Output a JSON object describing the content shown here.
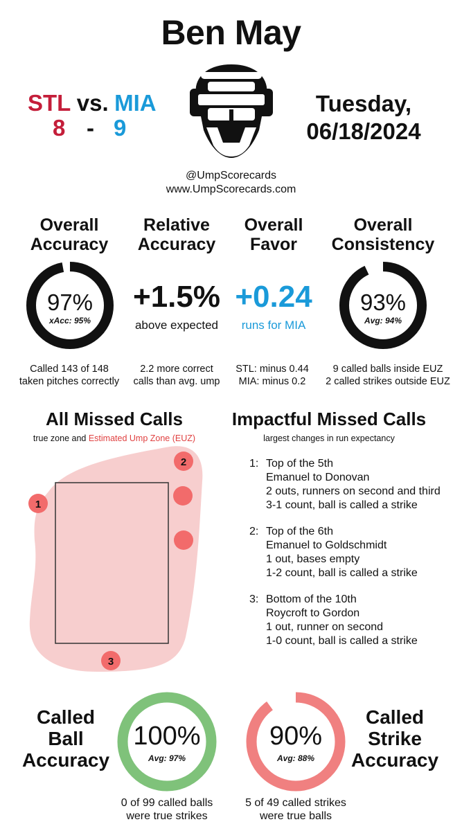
{
  "umpire": {
    "name": "Ben May"
  },
  "game": {
    "away_team": "STL",
    "home_team": "MIA",
    "vs": "vs.",
    "away_score": "8",
    "dash": "-",
    "home_score": "9",
    "date_line1": "Tuesday,",
    "date_line2": "06/18/2024"
  },
  "brand": {
    "handle": "@UmpScorecards",
    "website": "www.UmpScorecards.com"
  },
  "colors": {
    "away": "#c41e3a",
    "home": "#1a9ad9",
    "ball_ring": "#7fc27a",
    "strike_ring": "#f08080",
    "euz_fill": "#f6c9c9",
    "missed_call": "#f26b6b"
  },
  "stats": {
    "overall_accuracy": {
      "title1": "Overall",
      "title2": "Accuracy",
      "value": "97%",
      "ring_fraction": 0.97,
      "sub": "xAcc: 95%",
      "caption1": "Called 143 of 148",
      "caption2": "taken pitches correctly"
    },
    "relative_accuracy": {
      "title1": "Relative",
      "title2": "Accuracy",
      "value": "+1.5%",
      "sub": "above expected",
      "caption1": "2.2 more correct",
      "caption2": "calls than avg. ump"
    },
    "overall_favor": {
      "title1": "Overall",
      "title2": "Favor",
      "value": "+0.24",
      "sub": "runs for MIA",
      "caption1": "STL: minus 0.44",
      "caption2": "MIA: minus 0.2"
    },
    "overall_consistency": {
      "title1": "Overall",
      "title2": "Consistency",
      "value": "93%",
      "ring_fraction": 0.93,
      "sub": "Avg: 94%",
      "caption1": "9 called balls inside EUZ",
      "caption2": "2 called strikes outside EUZ"
    }
  },
  "missed_calls": {
    "title": "All Missed Calls",
    "subtitle_prefix": "true zone and ",
    "subtitle_euz": "Estimated Ump Zone (EUZ)",
    "markers": [
      {
        "label": "1"
      },
      {
        "label": "2"
      },
      {
        "label": ""
      },
      {
        "label": ""
      },
      {
        "label": "3"
      }
    ]
  },
  "impactful": {
    "title": "Impactful Missed Calls",
    "subtitle": "largest changes in run expectancy",
    "items": [
      {
        "num": "1:",
        "inning": "Top of the 5th",
        "matchup": "Emanuel to Donovan",
        "situation": "2 outs, runners on second and third",
        "call": "3-1 count, ball is called a strike"
      },
      {
        "num": "2:",
        "inning": "Top of the 6th",
        "matchup": "Emanuel to Goldschmidt",
        "situation": "1 out, bases empty",
        "call": "1-2 count, ball is called a strike"
      },
      {
        "num": "3:",
        "inning": "Bottom of the 10th",
        "matchup": "Roycroft to Gordon",
        "situation": "1 out, runner on second",
        "call": "1-0 count, ball is called a strike"
      }
    ]
  },
  "called_ball": {
    "title1": "Called",
    "title2": "Ball",
    "title3": "Accuracy",
    "value": "100%",
    "ring_fraction": 1.0,
    "sub": "Avg: 97%",
    "caption1": "0 of 99 called balls",
    "caption2": "were true strikes"
  },
  "called_strike": {
    "title1": "Called",
    "title2": "Strike",
    "title3": "Accuracy",
    "value": "90%",
    "ring_fraction": 0.9,
    "sub": "Avg: 88%",
    "caption1": "5 of 49 called strikes",
    "caption2": "were true balls"
  }
}
